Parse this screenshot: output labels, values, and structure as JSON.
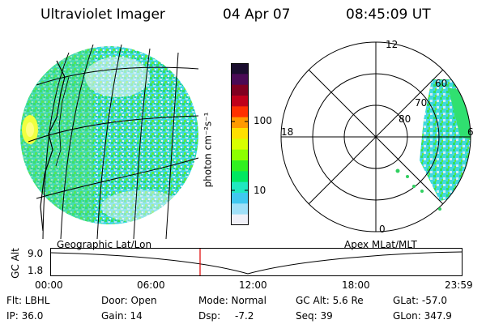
{
  "header": {
    "title": "Ultraviolet Imager",
    "date": "04 Apr 07",
    "time": "08:45:09 UT"
  },
  "colorbar": {
    "unit_label": "photon cm⁻²s⁻¹",
    "ticks": [
      "100",
      "10"
    ],
    "colors": [
      "#1a0d2e",
      "#4a0a55",
      "#800020",
      "#c0001a",
      "#ff3000",
      "#ff9a00",
      "#ffe000",
      "#d8ff00",
      "#8cff00",
      "#30f020",
      "#00e860",
      "#20e8c0",
      "#40c8f0",
      "#a0e0f8",
      "#f0f0f8"
    ]
  },
  "polar_plot": {
    "labels": [
      "12",
      "18",
      "6",
      "0",
      "80",
      "70",
      "60"
    ]
  },
  "timeline": {
    "left_label": "Geographic Lat/Lon",
    "right_label": "Apex MLat/MLT",
    "axis_label": "GC Alt",
    "yticks": [
      "9.0",
      "1.8"
    ],
    "xticks": [
      "00:00",
      "06:00",
      "12:00",
      "18:00",
      "23:59"
    ],
    "marker_color": "#e00000"
  },
  "info": {
    "flt": "Flt: LBHL",
    "ip": "IP: 36.0",
    "door": "Door: Open",
    "gain": "Gain: 14",
    "mode": "Mode: Normal",
    "dsp_label": "Dsp:",
    "dsp_value": "-7.2",
    "gcalt": "GC Alt: 5.6 Re",
    "seq": "Seq: 39",
    "glat": "GLat: -57.0",
    "glon": "GLon: 347.9"
  }
}
